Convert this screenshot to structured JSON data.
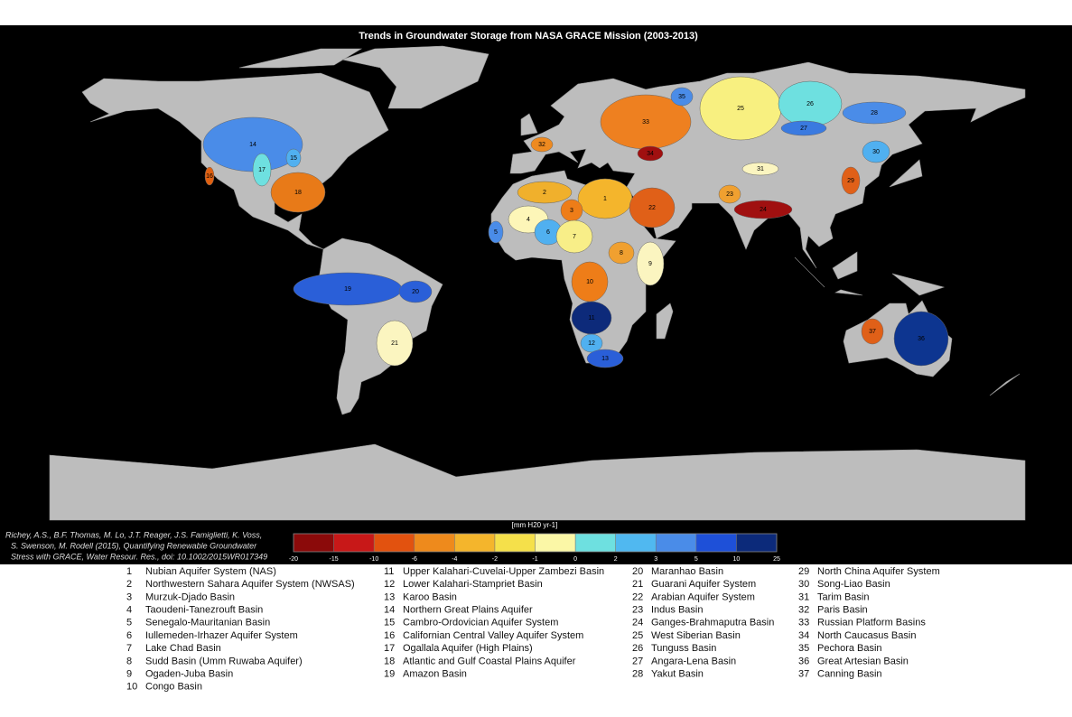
{
  "title": "Trends in Groundwater Storage from NASA GRACE Mission (2003-2013)",
  "citation": [
    "Richey, A.S., B.F. Thomas, M. Lo, J.T. Reager, J.S. Famiglietti, K. Voss,",
    "S. Swenson, M. Rodell (2015), Quantifying Renewable Groundwater",
    "Stress with GRACE, Water Resour. Res., doi: 10.1002/2015WR017349"
  ],
  "colorbar": {
    "label": "[mm H20 yr-1]",
    "ticks": [
      -20,
      -15,
      -10,
      -6,
      -4,
      -2,
      -1,
      0,
      2,
      3,
      5,
      10,
      25
    ],
    "colors": [
      "#8b0a0a",
      "#c81818",
      "#e2520f",
      "#ee8a1c",
      "#f4b52c",
      "#f5e04a",
      "#fbf7a6",
      "#6ee0e0",
      "#50b8f0",
      "#4a8ce8",
      "#1e50d8",
      "#0c2a7a"
    ]
  },
  "basins": [
    {
      "number": 1,
      "name": "Nubian Aquifer System (NAS)",
      "color": "#f4b52c"
    },
    {
      "number": 2,
      "name": "Northwestern Sahara Aquifer System (NWSAS)",
      "color": "#f0b02c"
    },
    {
      "number": 3,
      "name": "Murzuk-Djado Basin",
      "color": "#ee7d18"
    },
    {
      "number": 4,
      "name": "Taoudeni-Tanezrouft Basin",
      "color": "#fdf6b8"
    },
    {
      "number": 5,
      "name": "Senegalo-Mauritanian Basin",
      "color": "#4a8ce8"
    },
    {
      "number": 6,
      "name": "Iullemeden-Irhazer Aquifer System",
      "color": "#50b0f0"
    },
    {
      "number": 7,
      "name": "Lake Chad Basin",
      "color": "#f8ee88"
    },
    {
      "number": 8,
      "name": "Sudd Basin (Umm Ruwaba Aquifer)",
      "color": "#f0a030"
    },
    {
      "number": 9,
      "name": "Ogaden-Juba Basin",
      "color": "#fbf5c0"
    },
    {
      "number": 10,
      "name": "Congo Basin",
      "color": "#ee7d18"
    },
    {
      "number": 11,
      "name": "Upper Kalahari-Cuvelai-Upper Zambezi Basin",
      "color": "#0d2a7a"
    },
    {
      "number": 12,
      "name": "Lower Kalahari-Stampriet Basin",
      "color": "#50b0f0"
    },
    {
      "number": 13,
      "name": "Karoo Basin",
      "color": "#2a5fd8"
    },
    {
      "number": 14,
      "name": "Northern Great Plains Aquifer",
      "color": "#4a8ce8"
    },
    {
      "number": 15,
      "name": "Cambro-Ordovician Aquifer System",
      "color": "#50b0f0"
    },
    {
      "number": 16,
      "name": "Californian Central Valley Aquifer System",
      "color": "#e06010"
    },
    {
      "number": 17,
      "name": "Ogallala Aquifer (High Plains)",
      "color": "#6ee0e0"
    },
    {
      "number": 18,
      "name": "Atlantic and Gulf Coastal Plains Aquifer",
      "color": "#e87a18"
    },
    {
      "number": 19,
      "name": "Amazon Basin",
      "color": "#2a5fd8"
    },
    {
      "number": 20,
      "name": "Maranhao Basin",
      "color": "#2a5fd8"
    },
    {
      "number": 21,
      "name": "Guarani Aquifer System",
      "color": "#fbf5c0"
    },
    {
      "number": 22,
      "name": "Arabian Aquifer System",
      "color": "#e06018"
    },
    {
      "number": 23,
      "name": "Indus Basin",
      "color": "#f0a030"
    },
    {
      "number": 24,
      "name": "Ganges-Brahmaputra Basin",
      "color": "#a01010"
    },
    {
      "number": 25,
      "name": "West Siberian Basin",
      "color": "#f8f080"
    },
    {
      "number": 26,
      "name": "Tunguss Basin",
      "color": "#6ee0e0"
    },
    {
      "number": 27,
      "name": "Angara-Lena Basin",
      "color": "#3a7ae0"
    },
    {
      "number": 28,
      "name": "Yakut Basin",
      "color": "#4a8ce8"
    },
    {
      "number": 29,
      "name": "North China Aquifer System",
      "color": "#e06018"
    },
    {
      "number": 30,
      "name": "Song-Liao Basin",
      "color": "#50b0f0"
    },
    {
      "number": 31,
      "name": "Tarim Basin",
      "color": "#fbf5c0"
    },
    {
      "number": 32,
      "name": "Paris Basin",
      "color": "#ee8a20"
    },
    {
      "number": 33,
      "name": "Russian Platform Basins",
      "color": "#ee8020"
    },
    {
      "number": 34,
      "name": "North Caucasus Basin",
      "color": "#a01010"
    },
    {
      "number": 35,
      "name": "Pechora Basin",
      "color": "#4a8ce8"
    },
    {
      "number": 36,
      "name": "Great Artesian Basin",
      "color": "#0d3590"
    },
    {
      "number": 37,
      "name": "Canning Basin",
      "color": "#e06018"
    }
  ]
}
